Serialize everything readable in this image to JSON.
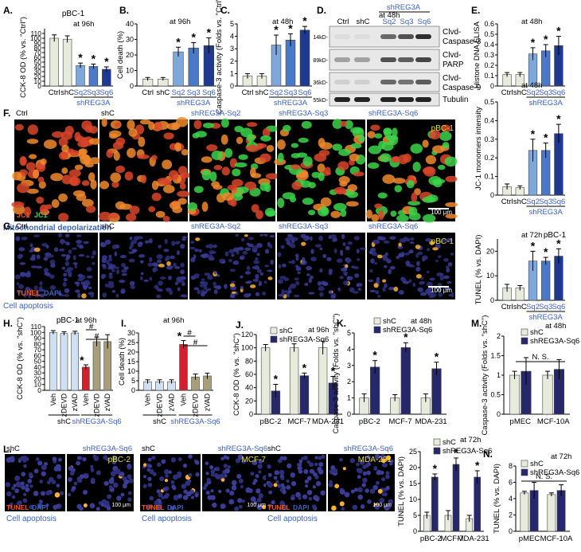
{
  "colors": {
    "light": "#e7ebdc",
    "sq2": "#7ea8dc",
    "sq3": "#4c78c8",
    "sq6": "#1d3a8e",
    "blue_text": "#3a63c6",
    "red": "#d3202d",
    "tan": "#a89f7a",
    "lightblue": "#cfe0f2",
    "navy": "#27286b",
    "yellow_text": "#e8dc3a"
  },
  "chart_data": [
    {
      "id": "A",
      "type": "bar",
      "panel": "A.",
      "condition": "at 96h",
      "cell_line": "pBC-1",
      "ylabel": "CCK-8 OD (% vs. \"Ctrl\")",
      "ylim": [
        0,
        120
      ],
      "yticks": [
        0,
        10,
        20,
        30,
        40,
        50,
        60,
        70,
        80,
        90,
        100,
        110
      ],
      "categories": [
        "Ctrl",
        "shC",
        "Sq2",
        "Sq3",
        "Sq6"
      ],
      "group_label": "shREG3A",
      "values": [
        100,
        98,
        43,
        41,
        35
      ],
      "errors": [
        7,
        7,
        5,
        5,
        5
      ],
      "sig": [
        false,
        false,
        true,
        true,
        true
      ]
    },
    {
      "id": "B",
      "type": "bar",
      "panel": "B.",
      "condition": "at 96h",
      "ylabel": "Cell death (%)",
      "ylim": [
        0,
        40
      ],
      "yticks": [
        0,
        10,
        20,
        30,
        40
      ],
      "categories": [
        "Ctrl",
        "shC",
        "Sq2",
        "Sq3",
        "Sq6"
      ],
      "group_label": "shREG3A",
      "values": [
        4.5,
        4.5,
        22,
        24.5,
        26
      ],
      "errors": [
        1,
        1,
        3,
        3.5,
        5
      ],
      "sig": [
        false,
        false,
        true,
        true,
        true
      ]
    },
    {
      "id": "C",
      "type": "bar",
      "panel": "C.",
      "condition": "at 48h",
      "ylabel": "Caspase-3 activity (Folds vs. \"Ctrl\")",
      "ylim": [
        0,
        5
      ],
      "yticks": [
        0,
        1,
        2,
        3,
        4,
        5
      ],
      "categories": [
        "Ctrl",
        "shC",
        "Sq2",
        "Sq3",
        "Sq6"
      ],
      "group_label": "shREG3A",
      "values": [
        0.8,
        0.8,
        3.3,
        3.7,
        4.5
      ],
      "errors": [
        0.2,
        0.2,
        0.8,
        0.5,
        0.3
      ],
      "sig": [
        false,
        false,
        true,
        true,
        true
      ]
    },
    {
      "id": "E",
      "type": "bar",
      "panel": "E.",
      "condition": "at 48h",
      "ylabel": "Histone DNA ELISA",
      "ylim": [
        0,
        0.6
      ],
      "yticks": [
        0.0,
        0.1,
        0.2,
        0.3,
        0.4,
        0.5,
        0.6
      ],
      "categories": [
        "Ctrl",
        "shC",
        "Sq2",
        "Sq3",
        "Sq6"
      ],
      "group_label": "shREG3A",
      "values": [
        0.11,
        0.11,
        0.31,
        0.34,
        0.39
      ],
      "errors": [
        0.02,
        0.02,
        0.06,
        0.06,
        0.09
      ],
      "sig": [
        false,
        false,
        true,
        true,
        true
      ]
    },
    {
      "id": "F",
      "type": "bar",
      "condition": "at 48h",
      "ylabel": "JC-1 monomers intensity",
      "ylim": [
        0,
        0.5
      ],
      "yticks": [
        0.0,
        0.1,
        0.2,
        0.3,
        0.4,
        0.5
      ],
      "categories": [
        "Ctrl",
        "shC",
        "Sq2",
        "Sq3",
        "Sq6"
      ],
      "group_label": "shREG3A",
      "values": [
        0.045,
        0.04,
        0.24,
        0.24,
        0.33
      ],
      "errors": [
        0.015,
        0.01,
        0.06,
        0.04,
        0.05
      ],
      "sig": [
        false,
        false,
        true,
        true,
        true
      ]
    },
    {
      "id": "G",
      "type": "bar",
      "condition": "at 72h",
      "cell_line": "pBC-1",
      "ylabel": "TUNEL (% vs. DAPI)",
      "ylim": [
        0,
        25
      ],
      "yticks": [
        0,
        10,
        20
      ],
      "categories": [
        "Ctrl",
        "shC",
        "Sq2",
        "Sq3",
        "Sq6"
      ],
      "group_label": "shREG3A",
      "values": [
        5,
        5,
        16,
        16,
        18
      ],
      "errors": [
        1.5,
        1,
        4,
        1.5,
        3
      ],
      "sig": [
        false,
        false,
        true,
        true,
        true
      ]
    },
    {
      "id": "H",
      "type": "bar",
      "panel": "H.",
      "condition": "at 96h",
      "cell_line": "pBC-1",
      "ylabel": "CCK-8 OD (% vs. \"shC\")",
      "ylim": [
        0,
        110
      ],
      "yticks": [
        0,
        10,
        20,
        30,
        40,
        50,
        60,
        70,
        80,
        90,
        100,
        110
      ],
      "categories": [
        "Veh",
        "zDEVD",
        "zVAD",
        "Veh",
        "zDEVD",
        "zVAD"
      ],
      "group_labels": [
        "shC",
        "shREG3A-Sq6"
      ],
      "values": [
        100,
        98,
        99,
        40,
        84,
        84
      ],
      "errors": [
        3,
        3,
        3,
        4,
        8,
        12
      ],
      "sig": [
        false,
        false,
        false,
        true,
        false,
        false
      ],
      "brackets": [
        {
          "from": 3,
          "to": 4,
          "label": "#"
        },
        {
          "from": 3,
          "to": 5,
          "label": "#"
        }
      ]
    },
    {
      "id": "I",
      "type": "bar",
      "panel": "I.",
      "condition": "at 96h",
      "ylabel": "Cell death (%)",
      "ylim": [
        0,
        30
      ],
      "yticks": [
        0,
        5,
        10,
        15,
        20,
        25,
        30
      ],
      "categories": [
        "Veh",
        "zDEVD",
        "zVAD",
        "Veh",
        "zDEVD",
        "zVAD"
      ],
      "group_labels": [
        "shC",
        "shREG3A-Sq6"
      ],
      "values": [
        4.5,
        4.5,
        4.5,
        24,
        7,
        7.5
      ],
      "errors": [
        1,
        1,
        1,
        2,
        1.5,
        1.5
      ],
      "sig": [
        false,
        false,
        false,
        true,
        false,
        false
      ],
      "brackets": [
        {
          "from": 3,
          "to": 4,
          "label": "#"
        },
        {
          "from": 3,
          "to": 5,
          "label": "#"
        }
      ]
    },
    {
      "id": "J",
      "type": "grouped_bar",
      "panel": "J.",
      "condition": "at 96h",
      "ylabel": "CCK-8 OD (% vs. \"shC\")",
      "ylim": [
        0,
        120
      ],
      "yticks": [
        0,
        20,
        40,
        60,
        80,
        100,
        120
      ],
      "categories": [
        "pBC-2",
        "MCF-7",
        "MDA-231"
      ],
      "series": [
        {
          "name": "shC",
          "values": [
            100,
            100,
            100
          ],
          "errors": [
            5,
            6,
            10
          ]
        },
        {
          "name": "shREG3A-Sq6",
          "values": [
            35,
            58,
            47
          ],
          "errors": [
            10,
            4,
            10
          ]
        }
      ],
      "sig": [
        true,
        true,
        true
      ]
    },
    {
      "id": "K",
      "type": "grouped_bar",
      "panel": "K.",
      "condition": "at 48h",
      "ylabel": "Caspase-3 activity (Folds vs. \"shC\")",
      "ylim": [
        0,
        5
      ],
      "yticks": [
        0,
        1,
        2,
        3,
        4,
        5
      ],
      "categories": [
        "pBC-2",
        "MCF-7",
        "MDA-231"
      ],
      "series": [
        {
          "name": "shC",
          "values": [
            1,
            1,
            1
          ],
          "errors": [
            0.25,
            0.2,
            0.25
          ]
        },
        {
          "name": "shREG3A-Sq6",
          "values": [
            2.9,
            4.1,
            2.8
          ],
          "errors": [
            0.4,
            0.3,
            0.4
          ]
        }
      ],
      "sig": [
        true,
        true,
        true
      ]
    },
    {
      "id": "M",
      "type": "grouped_bar",
      "panel": "M.",
      "condition": "at 48h",
      "ylabel": "Caspase-3 activity (Folds vs. \"shC\")",
      "ylim": [
        0,
        2
      ],
      "yticks": [
        0.0,
        0.5,
        1.0,
        1.5,
        2.0
      ],
      "categories": [
        "pMEC",
        "MCF-10A"
      ],
      "series": [
        {
          "name": "shC",
          "values": [
            1.0,
            1.0
          ],
          "errors": [
            0.1,
            0.1
          ]
        },
        {
          "name": "shREG3A-Sq6",
          "values": [
            1.1,
            1.15
          ],
          "errors": [
            0.35,
            0.25
          ]
        }
      ],
      "annotation": "N. S."
    },
    {
      "id": "L",
      "type": "grouped_bar",
      "condition": "at 72h",
      "ylabel": "TUNEL (% vs. DAPI)",
      "ylim": [
        0,
        25
      ],
      "yticks": [
        0,
        5,
        10,
        15,
        20,
        25
      ],
      "categories": [
        "pBC-2",
        "MCF-7",
        "MDA-231"
      ],
      "series": [
        {
          "name": "shC",
          "values": [
            5,
            5,
            4
          ],
          "errors": [
            1,
            1.5,
            1
          ]
        },
        {
          "name": "shREG3A-Sq6",
          "values": [
            17,
            21,
            17
          ],
          "errors": [
            1,
            2,
            2
          ]
        }
      ],
      "sig": [
        true,
        true,
        true
      ]
    },
    {
      "id": "N",
      "type": "grouped_bar",
      "panel": "N.",
      "condition": "at 72h",
      "ylabel": "TUNEL (% vs. DAPI)",
      "ylim": [
        0,
        8
      ],
      "yticks": [
        0,
        2,
        4,
        6,
        8
      ],
      "categories": [
        "pMEC",
        "MCF-10A"
      ],
      "series": [
        {
          "name": "shC",
          "values": [
            4.7,
            4.5
          ],
          "errors": [
            0.2,
            0.2
          ]
        },
        {
          "name": "shREG3A-Sq6",
          "values": [
            5.0,
            5.0
          ],
          "errors": [
            1.0,
            0.7
          ]
        }
      ],
      "annotation": "N. S."
    }
  ],
  "blot": {
    "panel": "D.",
    "condition": "at 48h",
    "group_label": "shREG3A",
    "lanes": [
      "Ctrl",
      "shC",
      "Sq2",
      "Sq3",
      "Sq6"
    ],
    "rows": [
      {
        "mw": "14kD-",
        "label": "Clvd-\nCaspase-3"
      },
      {
        "mw": "89kD-",
        "label": "Clvd-\nPARP"
      },
      {
        "mw": "36kD-",
        "label": "Clvd-\nCaspase-9"
      },
      {
        "mw": "55kD-",
        "label": "Tubulin"
      }
    ]
  },
  "panelF_images": {
    "panel": "F.",
    "titles": [
      "Ctrl",
      "shC",
      "shREG3A-Sq2",
      "shREG3A-Sq3",
      "shREG3A-Sq6"
    ],
    "cell_line": "pBC-1",
    "stain_left": "JC1",
    "stain_right": "JC1",
    "scale": "100 μm",
    "caption": "Mitochondrial depolarization"
  },
  "panelG_images": {
    "panel": "G.",
    "titles": [
      "Ctrl",
      "shC",
      "shREG3A-Sq2",
      "shREG3A-Sq3",
      "shREG3A-Sq6"
    ],
    "cell_line": "pBC-1",
    "stain_left": "TUNEL",
    "stain_right": "DAPI",
    "scale": "100 μm",
    "caption": "Cell apoptosis"
  },
  "panelL_images": {
    "panel": "L.",
    "pairs": [
      {
        "left": "shC",
        "right": "shREG3A-Sq6",
        "line": "pBC-2"
      },
      {
        "left": "shC",
        "right": "shREG3A-Sq6",
        "line": "MCF-7"
      },
      {
        "left": "shC",
        "right": "shREG3A-Sq6",
        "line": "MDA-231"
      }
    ],
    "stain_left": "TUNEL",
    "stain_right": "DAPI",
    "scale": "100 μm",
    "caption": "Cell apoptosis"
  }
}
